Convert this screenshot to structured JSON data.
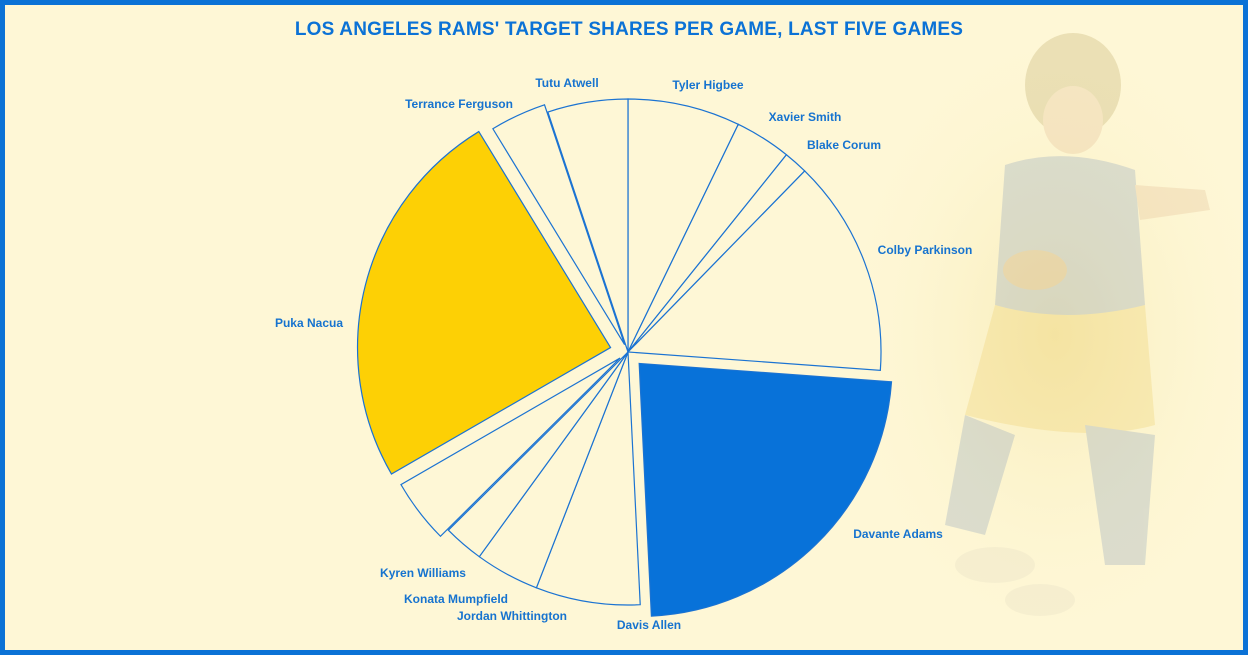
{
  "chart_data": {
    "type": "pie",
    "title": "LOS ANGELES RAMS' TARGET SHARES PER GAME, LAST FIVE GAMES",
    "slices": [
      {
        "name": "Tyler Higbee",
        "value": 7
      },
      {
        "name": "Xavier Smith",
        "value": 3.5
      },
      {
        "name": "Blake Corum",
        "value": 1.5
      },
      {
        "name": "Colby Parkinson",
        "value": 13.5
      },
      {
        "name": "Davante Adams",
        "value": 22.5
      },
      {
        "name": "Davis Allen",
        "value": 6.5
      },
      {
        "name": "Jordan Whittington",
        "value": 4
      },
      {
        "name": "Konata Mumpfield",
        "value": 2.5
      },
      {
        "name": "Kyren Williams",
        "value": 4
      },
      {
        "name": "Puka Nacua",
        "value": 24
      },
      {
        "name": "Terrance Ferguson",
        "value": 3.5
      },
      {
        "name": "Tutu Atwell",
        "value": 5
      }
    ],
    "colors": {
      "Puka Nacua": "#fdd005",
      "Davante Adams": "#0872d9",
      "default": "#fef7d6",
      "stroke": "#1b73d2"
    },
    "exploded": [
      "Davante Adams",
      "Puka Nacua",
      "Terrance Ferguson",
      "Kyren Williams"
    ]
  }
}
